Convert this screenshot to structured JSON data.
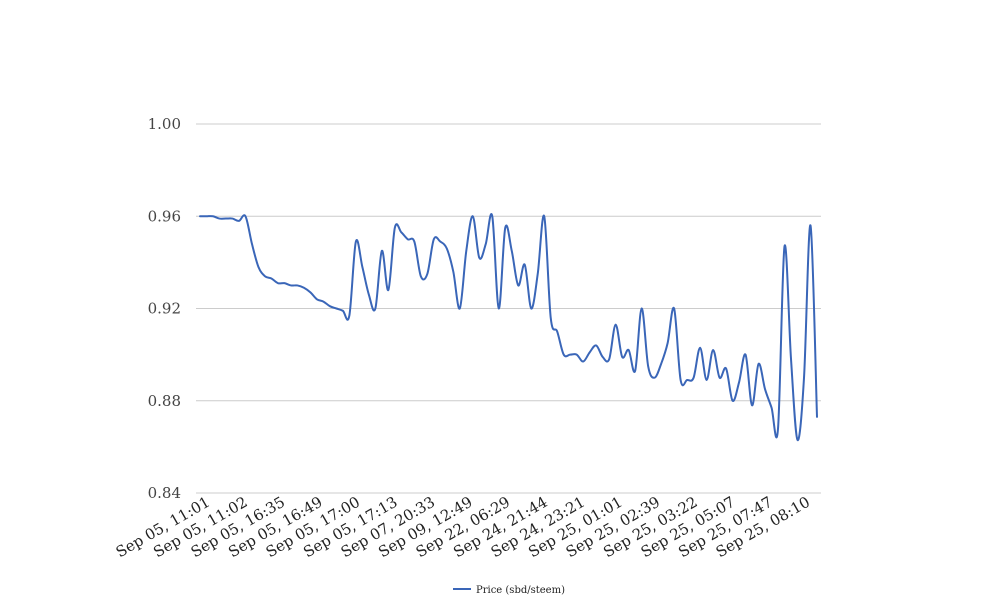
{
  "chart_data": {
    "type": "line",
    "title": "",
    "xlabel": "",
    "ylabel": "",
    "ylim": [
      0.84,
      1.0
    ],
    "y_ticks": [
      "0.84",
      "0.88",
      "0.92",
      "0.96",
      "1.00"
    ],
    "x_tick_labels": [
      "Sep 05, 11:01",
      "Sep 05, 11:02",
      "Sep 05, 16:35",
      "Sep 05, 16:49",
      "Sep 05, 17:00",
      "Sep 05, 17:13",
      "Sep 07, 20:33",
      "Sep 09, 12:49",
      "Sep 22, 06:29",
      "Sep 24, 21:44",
      "Sep 24, 23:21",
      "Sep 25, 01:01",
      "Sep 25, 02:39",
      "Sep 25, 03:22",
      "Sep 25, 05:07",
      "Sep 25, 07:47",
      "Sep 25, 08:10"
    ],
    "grid": true,
    "legend_position": "bottom",
    "series": [
      {
        "name": "Price (sbd/steem)",
        "color": "#3a66b8",
        "values": [
          0.96,
          0.96,
          0.96,
          0.959,
          0.959,
          0.959,
          0.958,
          0.96,
          0.948,
          0.938,
          0.934,
          0.933,
          0.931,
          0.931,
          0.93,
          0.93,
          0.929,
          0.927,
          0.924,
          0.923,
          0.921,
          0.92,
          0.919,
          0.917,
          0.949,
          0.938,
          0.926,
          0.92,
          0.945,
          0.928,
          0.955,
          0.953,
          0.95,
          0.949,
          0.934,
          0.935,
          0.95,
          0.949,
          0.946,
          0.936,
          0.92,
          0.945,
          0.96,
          0.942,
          0.948,
          0.96,
          0.92,
          0.955,
          0.945,
          0.93,
          0.939,
          0.92,
          0.935,
          0.96,
          0.916,
          0.91,
          0.9,
          0.9,
          0.9,
          0.897,
          0.901,
          0.904,
          0.899,
          0.898,
          0.913,
          0.899,
          0.902,
          0.893,
          0.92,
          0.895,
          0.89,
          0.896,
          0.905,
          0.92,
          0.889,
          0.889,
          0.89,
          0.903,
          0.889,
          0.902,
          0.89,
          0.894,
          0.88,
          0.888,
          0.9,
          0.878,
          0.896,
          0.885,
          0.877,
          0.868,
          0.947,
          0.898,
          0.863,
          0.89,
          0.956,
          0.873
        ]
      }
    ]
  }
}
